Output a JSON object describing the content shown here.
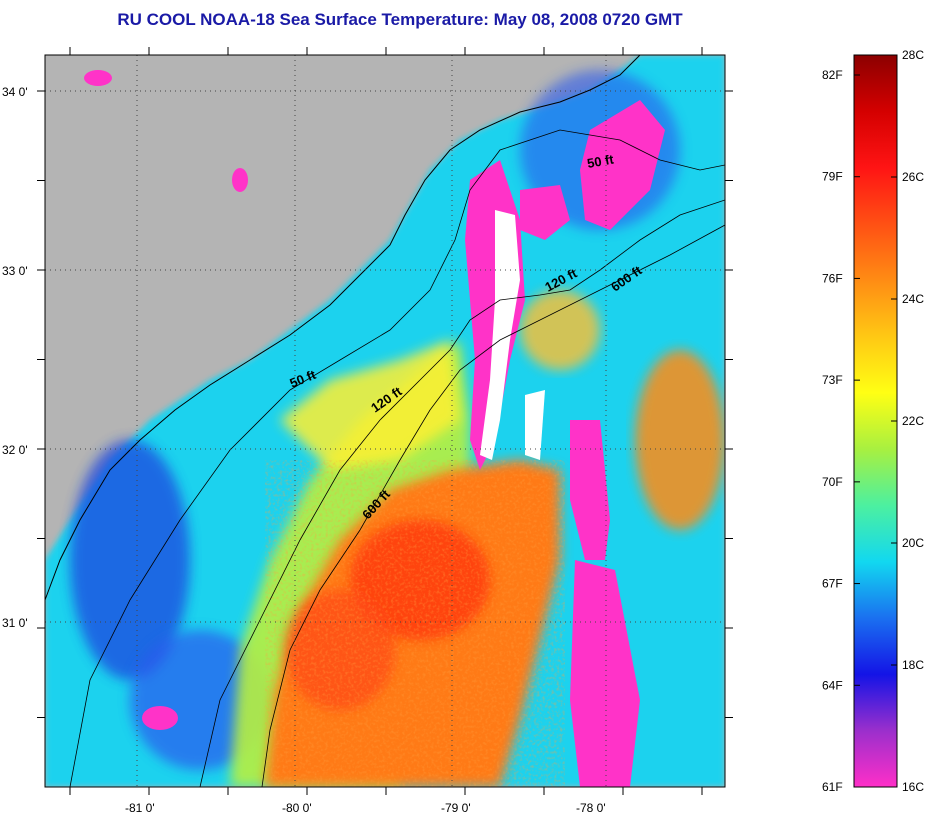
{
  "title": "RU COOL  NOAA-18  Sea Surface Temperature:  May 08, 2008 0720 GMT",
  "map": {
    "lat_labels": [
      "34 0'",
      "33 0'",
      "32 0'",
      "31 0'"
    ],
    "lon_labels": [
      "-81 0'",
      "-80 0'",
      "-79 0'",
      "-78 0'"
    ],
    "isobaths": [
      {
        "label": "50 ft"
      },
      {
        "label": "120 ft"
      },
      {
        "label": "600 ft"
      },
      {
        "label": "50 ft"
      },
      {
        "label": "120 ft"
      },
      {
        "label": "600 ft"
      }
    ],
    "colors": {
      "land": "#b4b4b4",
      "white_no_data": "#ffffff"
    }
  },
  "colorbar": {
    "fahrenheit": [
      "82F",
      "79F",
      "76F",
      "73F",
      "70F",
      "67F",
      "64F",
      "61F"
    ],
    "celsius": [
      "28C",
      "26C",
      "24C",
      "22C",
      "20C",
      "18C",
      "16C"
    ],
    "stops": [
      "#ff2fc8",
      "#9b2fcc",
      "#1414e6",
      "#1a70f0",
      "#12d8f0",
      "#4cf0a0",
      "#a8f040",
      "#ffff14",
      "#ffc814",
      "#ff8c14",
      "#ff5014",
      "#ff1414",
      "#d40000",
      "#8c0000"
    ]
  }
}
